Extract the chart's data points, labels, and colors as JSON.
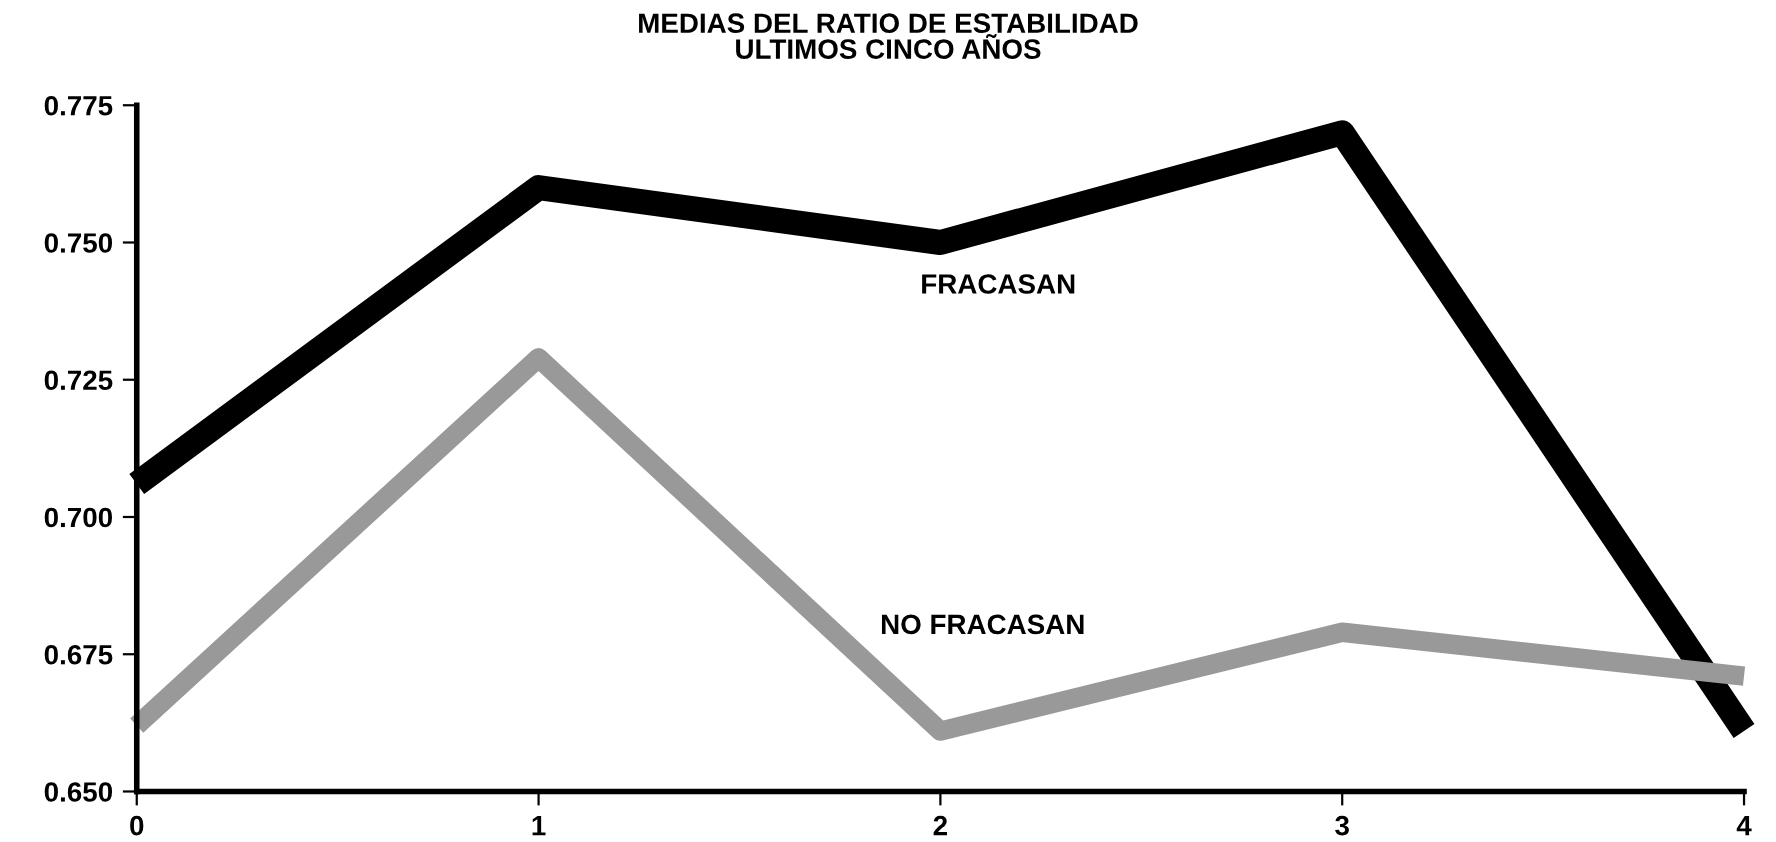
{
  "chart_data": {
    "type": "line",
    "title": "MEDIAS DEL RATIO DE ESTABILIDAD\nULTIMOS CINCO AÑOS",
    "x": [
      0,
      1,
      2,
      3,
      4
    ],
    "series": [
      {
        "name": "FRACASAN",
        "color": "#000000",
        "values": [
          0.706,
          0.76,
          0.75,
          0.77,
          0.661
        ]
      },
      {
        "name": "NO FRACASAN",
        "color": "#999999",
        "values": [
          0.662,
          0.729,
          0.661,
          0.679,
          0.671
        ]
      }
    ],
    "xlim": [
      0,
      4
    ],
    "xticks": [
      0,
      1,
      2,
      3,
      4
    ],
    "ylim": [
      0.65,
      0.775
    ],
    "yticks": [
      {
        "value": 0.65,
        "label": "0.650"
      },
      {
        "value": 0.675,
        "label": "0.675"
      },
      {
        "value": 0.7,
        "label": "0.700"
      },
      {
        "value": 0.725,
        "label": "0.725"
      },
      {
        "value": 0.75,
        "label": "0.750"
      },
      {
        "value": 0.775,
        "label": "0.775"
      }
    ],
    "grid": false,
    "legend": false,
    "marker": "none",
    "line_style": "solid"
  }
}
